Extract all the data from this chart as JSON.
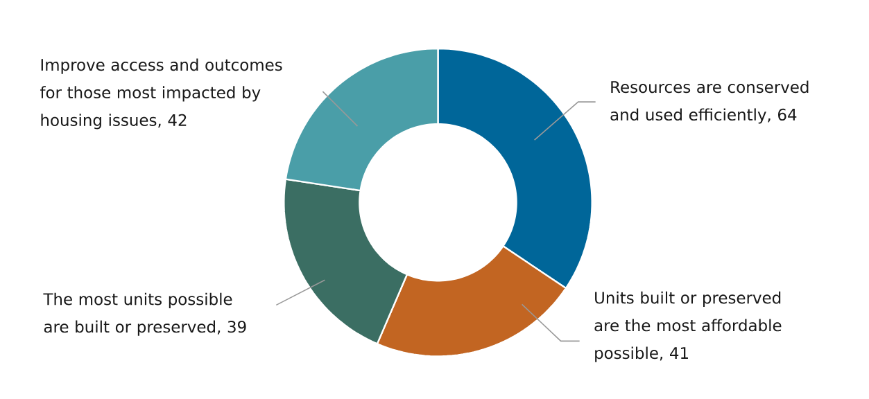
{
  "chart_data": {
    "type": "donut",
    "categories": [
      "Resources are conserved and used efficiently",
      "Units built or preserved are the most affordable possible",
      "The most units possible are built or preserved",
      "Improve access and outcomes for those most impacted by housing issues"
    ],
    "values": [
      64,
      41,
      39,
      42
    ],
    "colors": [
      "#006699",
      "#c26522",
      "#3b6e63",
      "#4a9ea8"
    ],
    "value_labels": [
      ", 64",
      ", 41",
      ", 39",
      ", 42"
    ]
  }
}
